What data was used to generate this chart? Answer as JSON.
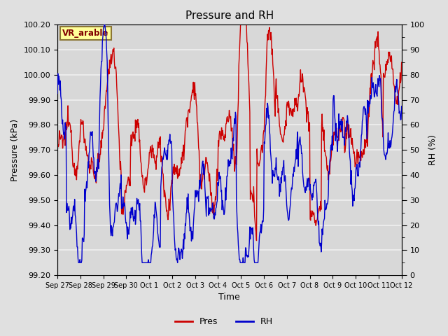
{
  "title": "Pressure and RH",
  "xlabel": "Time",
  "ylabel_left": "Pressure (kPa)",
  "ylabel_right": "RH (%)",
  "annotation": "VR_arable",
  "ylim_left": [
    99.2,
    100.2
  ],
  "ylim_right": [
    0,
    100
  ],
  "yticks_left": [
    99.2,
    99.3,
    99.4,
    99.5,
    99.6,
    99.7,
    99.8,
    99.9,
    100.0,
    100.1,
    100.2
  ],
  "yticks_right": [
    0,
    10,
    20,
    30,
    40,
    50,
    60,
    70,
    80,
    90,
    100
  ],
  "xtick_labels": [
    "Sep 27",
    "Sep 28",
    "Sep 29",
    "Sep 30",
    "Oct 1",
    "Oct 2",
    "Oct 3",
    "Oct 4",
    "Oct 5",
    "Oct 6",
    "Oct 7",
    "Oct 8",
    "Oct 9",
    "Oct 10",
    "Oct 11",
    "Oct 12"
  ],
  "pres_color": "#cc0000",
  "rh_color": "#0000cc",
  "fig_bg_color": "#e0e0e0",
  "plot_bg_color": "#d8d8d8",
  "grid_color": "#f0f0f0",
  "legend_pres": "Pres",
  "legend_rh": "RH",
  "annotation_bg": "#ffff99",
  "annotation_border": "#8B7536",
  "annotation_text_color": "#800000",
  "title_fontsize": 11,
  "axis_fontsize": 9,
  "tick_fontsize": 8
}
